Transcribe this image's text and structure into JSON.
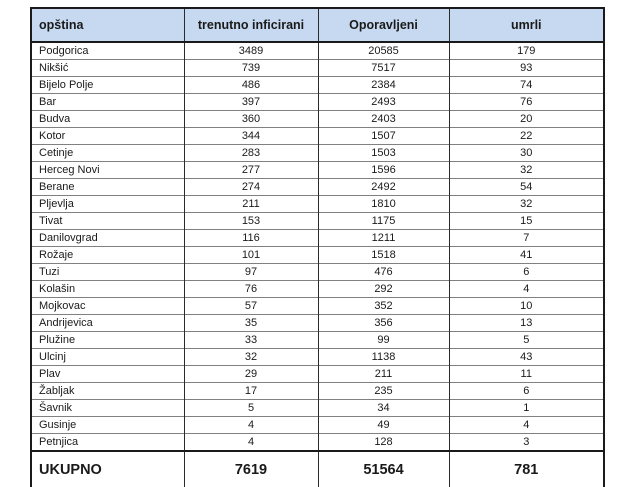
{
  "table": {
    "columns": [
      "opština",
      "trenutno inficirani",
      "Oporavljeni",
      "umrli"
    ],
    "rows": [
      [
        "Podgorica",
        "3489",
        "20585",
        "179"
      ],
      [
        "Nikšić",
        "739",
        "7517",
        "93"
      ],
      [
        "Bijelo Polje",
        "486",
        "2384",
        "74"
      ],
      [
        "Bar",
        "397",
        "2493",
        "76"
      ],
      [
        "Budva",
        "360",
        "2403",
        "20"
      ],
      [
        "Kotor",
        "344",
        "1507",
        "22"
      ],
      [
        "Cetinje",
        "283",
        "1503",
        "30"
      ],
      [
        "Herceg Novi",
        "277",
        "1596",
        "32"
      ],
      [
        "Berane",
        "274",
        "2492",
        "54"
      ],
      [
        "Pljevlja",
        "211",
        "1810",
        "32"
      ],
      [
        "Tivat",
        "153",
        "1175",
        "15"
      ],
      [
        "Danilovgrad",
        "116",
        "1211",
        "7"
      ],
      [
        "Rožaje",
        "101",
        "1518",
        "41"
      ],
      [
        "Tuzi",
        "97",
        "476",
        "6"
      ],
      [
        "Kolašin",
        "76",
        "292",
        "4"
      ],
      [
        "Mojkovac",
        "57",
        "352",
        "10"
      ],
      [
        "Andrijevica",
        "35",
        "356",
        "13"
      ],
      [
        "Plužine",
        "33",
        "99",
        "5"
      ],
      [
        "Ulcinj",
        "32",
        "1138",
        "43"
      ],
      [
        "Plav",
        "29",
        "211",
        "11"
      ],
      [
        "Žabljak",
        "17",
        "235",
        "6"
      ],
      [
        "Šavnik",
        "5",
        "34",
        "1"
      ],
      [
        "Gusinje",
        "4",
        "49",
        "4"
      ],
      [
        "Petnjica",
        "4",
        "128",
        "3"
      ]
    ],
    "total": [
      "UKUPNO",
      "7619",
      "51564",
      "781"
    ]
  },
  "colors": {
    "header_bg": "#c6d9f0",
    "border_dark": "#1a1a1a",
    "border_row": "#808080",
    "text": "#1a1a1a"
  }
}
